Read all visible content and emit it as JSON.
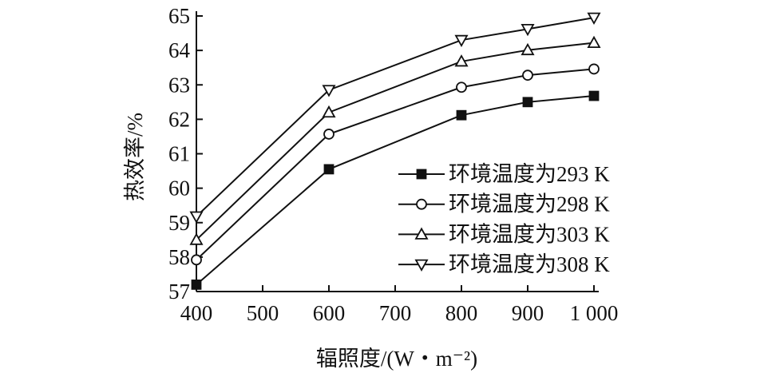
{
  "chart_data": {
    "type": "line",
    "xlabel": "辐照度/(W・m⁻²)",
    "ylabel": "热效率/%",
    "x": [
      400,
      600,
      800,
      900,
      1000
    ],
    "x_ticks": [
      400,
      500,
      600,
      700,
      800,
      900,
      1000
    ],
    "x_tick_labels": [
      "400",
      "500",
      "600",
      "700",
      "800",
      "900",
      "1 000"
    ],
    "y_ticks": [
      57,
      58,
      59,
      60,
      61,
      62,
      63,
      64,
      65
    ],
    "y_tick_labels": [
      "57",
      "58",
      "59",
      "60",
      "61",
      "62",
      "63",
      "64",
      "65"
    ],
    "xlim": [
      400,
      1000
    ],
    "ylim": [
      57,
      65
    ],
    "grid": false,
    "legend_position": "right",
    "series": [
      {
        "name": "环境温度为293 K",
        "marker": "square-filled",
        "values": [
          57.2,
          60.55,
          62.12,
          62.5,
          62.68
        ]
      },
      {
        "name": "环境温度为298 K",
        "marker": "circle-open",
        "values": [
          57.92,
          61.57,
          62.93,
          63.28,
          63.46
        ]
      },
      {
        "name": "环境温度为303 K",
        "marker": "triangle-up-open",
        "values": [
          58.5,
          62.2,
          63.68,
          64.01,
          64.22
        ]
      },
      {
        "name": "环境温度为308 K",
        "marker": "triangle-down-open",
        "values": [
          59.18,
          62.85,
          64.3,
          64.62,
          64.95
        ]
      }
    ]
  }
}
